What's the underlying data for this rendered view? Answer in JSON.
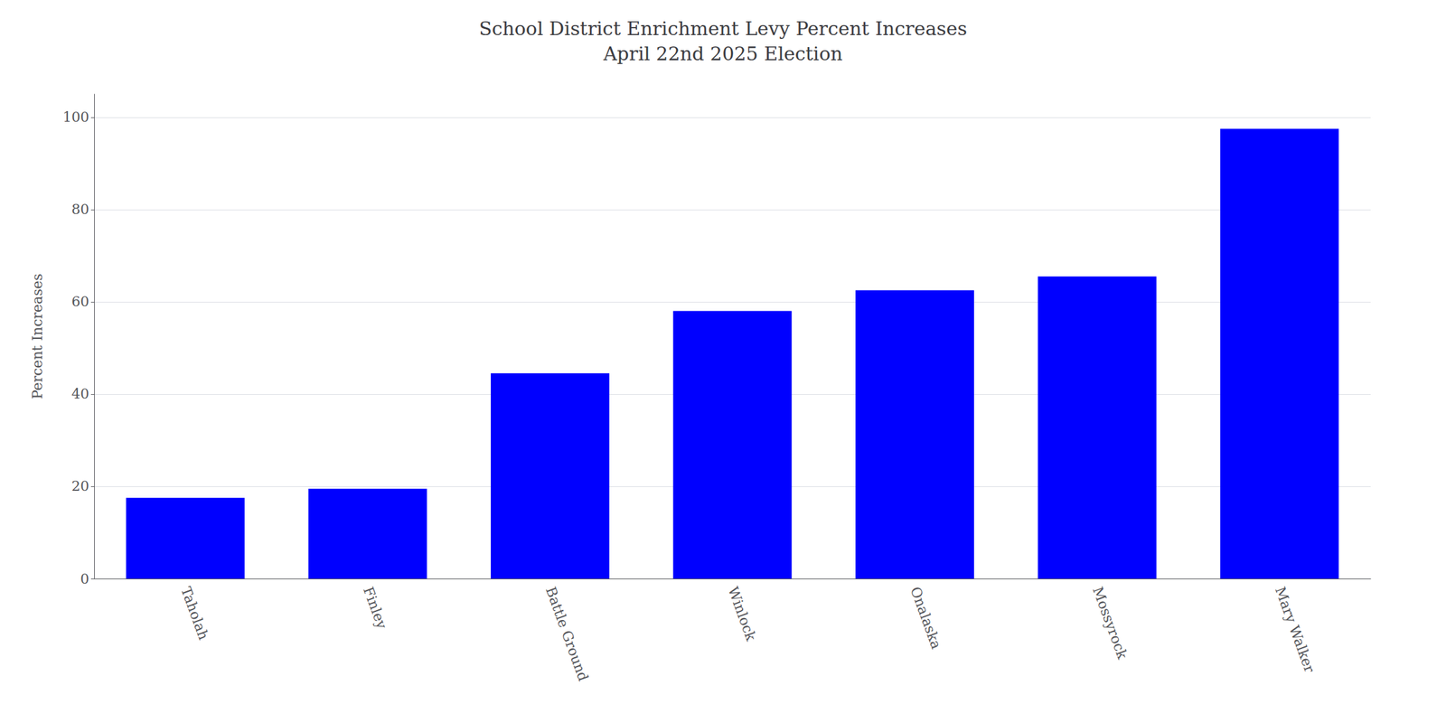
{
  "chart_data": {
    "type": "bar",
    "title": "School District Enrichment Levy Percent Increases\nApril 22nd 2025 Election",
    "categories": [
      "Taholah",
      "Finley",
      "Battle Ground",
      "Winlock",
      "Onalaska",
      "Mossyrock",
      "Mary Walker"
    ],
    "values": [
      17.5,
      19.5,
      44.5,
      58.0,
      62.5,
      65.5,
      97.5
    ],
    "color": "#0000ff",
    "ylabel": "Percent Increases",
    "ylim": [
      0,
      105
    ],
    "yticks": [
      0,
      20,
      40,
      60,
      80,
      100
    ],
    "grid": true
  }
}
